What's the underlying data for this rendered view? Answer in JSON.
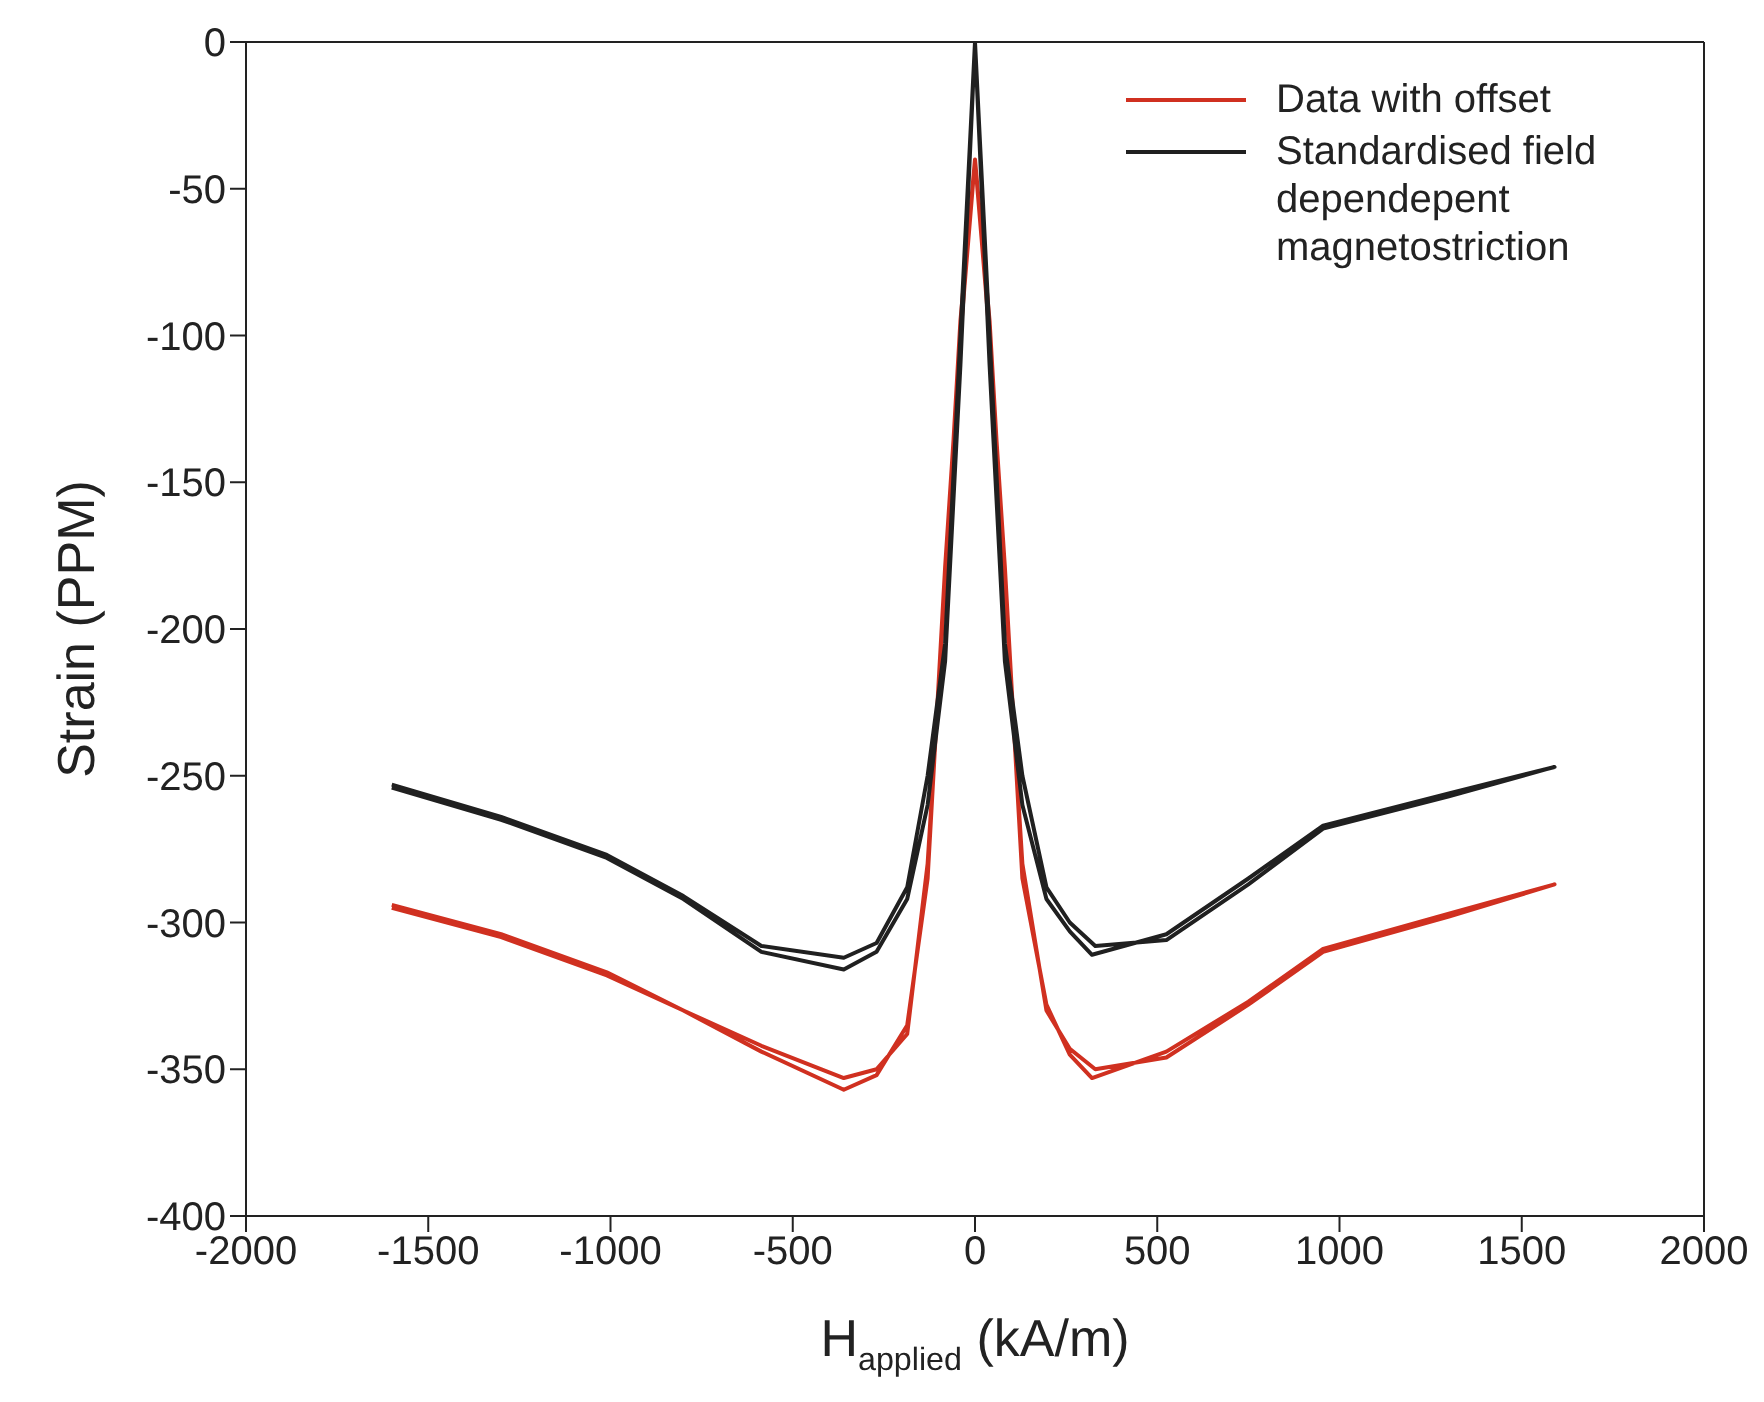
{
  "chart_data": {
    "type": "line",
    "xlabel": "H$_{applied}$ (kA/m)",
    "ylabel": "Strain (PPM)",
    "xlim": [
      -2000,
      2000
    ],
    "xticks": [
      -2000,
      -1500,
      -1000,
      -500,
      0,
      500,
      1000,
      1500,
      2000
    ],
    "ylim": [
      -400,
      0
    ],
    "yticks": [
      -400,
      -350,
      -300,
      -250,
      -200,
      -150,
      -100,
      -50,
      0
    ],
    "legend": "top right",
    "marker": "none",
    "line_style": "solid",
    "series": [
      {
        "name": "Data with offset",
        "color": "#d03020",
        "x": [
          -1600,
          -1300,
          -1010,
          -800,
          -586,
          -360,
          -270,
          -186,
          -130,
          -82,
          -40,
          0,
          40,
          82,
          130,
          196,
          260,
          321,
          525,
          750,
          955,
          1300,
          1590,
          1300,
          955,
          750,
          525,
          330,
          260,
          196,
          130,
          82,
          40,
          0,
          -40,
          -82,
          -130,
          -186,
          -270,
          -360,
          -586,
          -800,
          -1010,
          -1300,
          -1600
        ],
        "values": [
          -295,
          -305,
          -318,
          -330,
          -344,
          -357,
          -352,
          -335,
          -285,
          -179,
          -100,
          -40,
          -100,
          -179,
          -285,
          -328,
          -345,
          -353,
          -344,
          -327,
          -309,
          -297,
          -287,
          -298,
          -310,
          -328,
          -346,
          -350,
          -343,
          -330,
          -280,
          -185,
          -95,
          -40,
          -95,
          -185,
          -280,
          -338,
          -350,
          -353,
          -342,
          -330,
          -317,
          -304,
          -294
        ]
      },
      {
        "name": "Standardised field dependepent magnetostriction",
        "color": "#202020",
        "x": [
          -1600,
          -1300,
          -1010,
          -800,
          -586,
          -360,
          -270,
          -186,
          -130,
          -82,
          -40,
          0,
          40,
          82,
          130,
          196,
          260,
          321,
          525,
          750,
          955,
          1300,
          1590,
          1300,
          955,
          750,
          525,
          330,
          260,
          196,
          130,
          82,
          40,
          0,
          -40,
          -82,
          -130,
          -186,
          -270,
          -360,
          -586,
          -800,
          -1010,
          -1300,
          -1600
        ],
        "values": [
          -254,
          -265,
          -278,
          -292,
          -310,
          -316,
          -310,
          -292,
          -260,
          -211,
          -110,
          0,
          -110,
          -211,
          -260,
          -292,
          -303,
          -311,
          -304,
          -285,
          -267,
          -256,
          -247,
          -257,
          -268,
          -287,
          -306,
          -308,
          -300,
          -288,
          -250,
          -205,
          -100,
          0,
          -100,
          -205,
          -250,
          -288,
          -307,
          -312,
          -308,
          -291,
          -277,
          -264,
          -253
        ]
      }
    ]
  }
}
